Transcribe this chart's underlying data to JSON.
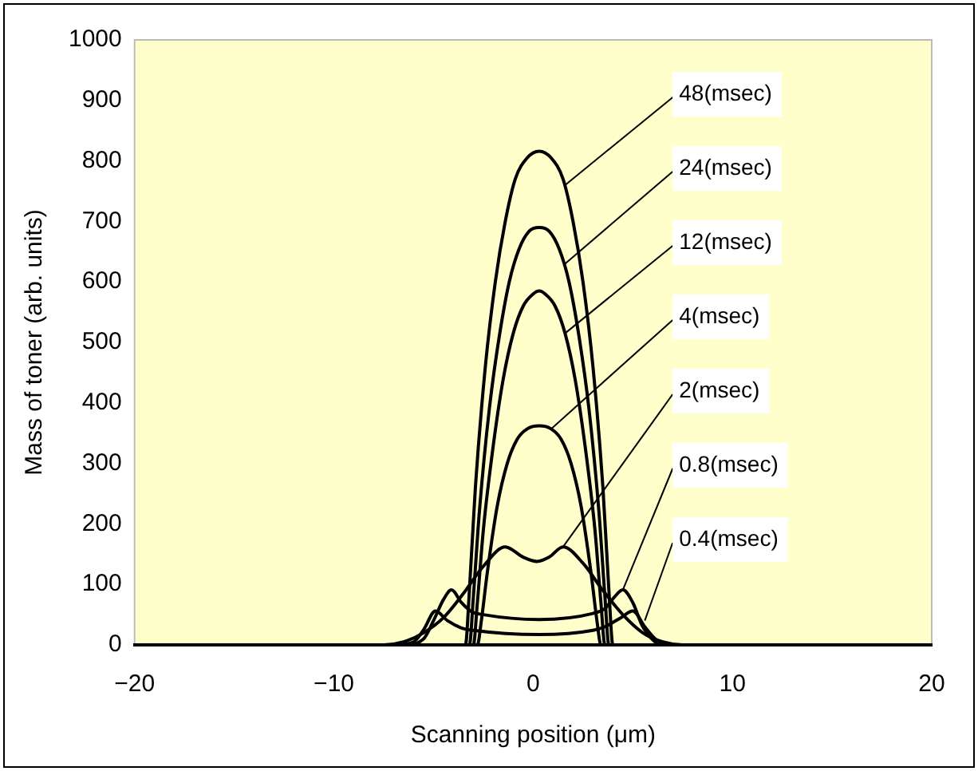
{
  "chart_data": {
    "type": "line",
    "xlabel": "Scanning position (μm)",
    "ylabel": "Mass of toner (arb. units)",
    "xlim": [
      -20,
      20
    ],
    "xticks": [
      {
        "value": -20,
        "label": "−20"
      },
      {
        "value": -10,
        "label": "−10"
      },
      0,
      10,
      20
    ],
    "ylim": [
      0,
      1000
    ],
    "yticks": [
      0,
      100,
      200,
      300,
      400,
      500,
      600,
      700,
      800,
      900,
      1000
    ],
    "grid": false,
    "legend": false,
    "marker": "none",
    "line_style": "solid",
    "series": [
      {
        "color": "#000000",
        "x": [
          -20,
          -3.4,
          -3.2,
          -2.9,
          -2.4,
          -1.9,
          -1.4,
          -0.9,
          -0.3,
          0.3,
          0.9,
          1.5,
          2.0,
          2.5,
          3.0,
          3.5,
          3.8,
          4.0,
          20
        ],
        "values": [
          0,
          0,
          90,
          260,
          460,
          600,
          700,
          770,
          805,
          816,
          805,
          770,
          700,
          600,
          460,
          260,
          90,
          0,
          0
        ]
      },
      {
        "color": "#000000",
        "x": [
          -20,
          -3.2,
          -3.0,
          -2.7,
          -2.2,
          -1.7,
          -1.2,
          -0.7,
          -0.2,
          0.3,
          0.8,
          1.3,
          1.8,
          2.3,
          2.8,
          3.3,
          3.6,
          3.8,
          20
        ],
        "values": [
          0,
          0,
          80,
          220,
          390,
          510,
          600,
          655,
          684,
          690,
          684,
          655,
          600,
          510,
          390,
          220,
          80,
          0,
          0
        ]
      },
      {
        "color": "#000000",
        "x": [
          -20,
          -3.0,
          -2.8,
          -2.5,
          -2.0,
          -1.5,
          -1.0,
          -0.5,
          0.0,
          0.3,
          0.6,
          1.1,
          1.6,
          2.1,
          2.6,
          3.1,
          3.4,
          3.6,
          20
        ],
        "values": [
          0,
          0,
          70,
          190,
          330,
          440,
          515,
          560,
          580,
          585,
          580,
          560,
          515,
          440,
          330,
          190,
          70,
          0,
          0
        ]
      },
      {
        "color": "#000000",
        "x": [
          -20,
          -2.8,
          -2.6,
          -2.3,
          -1.8,
          -1.3,
          -0.8,
          -0.3,
          0.3,
          0.9,
          1.4,
          1.9,
          2.4,
          2.9,
          3.2,
          3.4,
          20
        ],
        "values": [
          0,
          0,
          40,
          120,
          230,
          300,
          340,
          357,
          362,
          357,
          340,
          300,
          230,
          120,
          40,
          0,
          0
        ]
      },
      {
        "color": "#000000",
        "x": [
          -20,
          -7.5,
          -6.5,
          -5.5,
          -4.5,
          -3.5,
          -2.5,
          -1.4,
          -0.5,
          0.2,
          0.8,
          1.5,
          2.5,
          3.5,
          4.5,
          5.5,
          6.5,
          7.5,
          20
        ],
        "values": [
          0,
          0,
          5,
          20,
          45,
          85,
          130,
          162,
          145,
          138,
          145,
          162,
          135,
          90,
          50,
          20,
          5,
          0,
          0
        ]
      },
      {
        "color": "#000000",
        "x": [
          -20,
          -6.5,
          -5.5,
          -5.0,
          -4.5,
          -4.1,
          -3.6,
          -3.1,
          -2.5,
          0.3,
          3.0,
          3.6,
          4.1,
          4.5,
          5.0,
          5.5,
          6.5,
          20
        ],
        "values": [
          0,
          0,
          10,
          40,
          75,
          91,
          70,
          55,
          50,
          42,
          52,
          60,
          80,
          91,
          70,
          30,
          0,
          0
        ]
      },
      {
        "color": "#000000",
        "x": [
          -20,
          -7,
          -6,
          -5.5,
          -4.9,
          -4.3,
          -3.6,
          -3,
          0.3,
          3,
          3.6,
          4.4,
          5.0,
          5.6,
          6.2,
          7,
          20
        ],
        "values": [
          0,
          0,
          5,
          25,
          56,
          40,
          28,
          24,
          17,
          24,
          30,
          45,
          56,
          30,
          8,
          0,
          0
        ]
      }
    ],
    "annotations": [
      {
        "text": "48(msec)",
        "x": 1.6,
        "y": 760
      },
      {
        "text": "24(msec)",
        "x": 1.6,
        "y": 630
      },
      {
        "text": "12(msec)",
        "x": 1.6,
        "y": 515
      },
      {
        "text": "4(msec)",
        "x": 0.9,
        "y": 357
      },
      {
        "text": "2(msec)",
        "x": 1.5,
        "y": 162
      },
      {
        "text": "0.8(msec)",
        "x": 4.5,
        "y": 91
      },
      {
        "text": "0.4(msec)",
        "x": 5.6,
        "y": 40
      }
    ]
  }
}
